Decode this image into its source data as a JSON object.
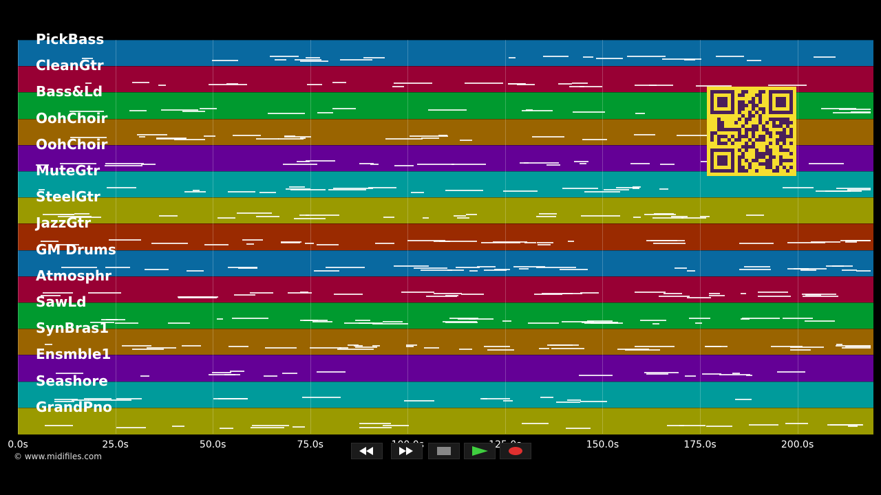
{
  "tracks": [
    {
      "name": "PickBass",
      "color": "#0969a0"
    },
    {
      "name": "CleanGtr",
      "color": "#980034"
    },
    {
      "name": "Bass&Ld",
      "color": "#009a2f"
    },
    {
      "name": "OohChoir",
      "color": "#9a6400"
    },
    {
      "name": "OohChoir",
      "color": "#640096"
    },
    {
      "name": "MuteGtr",
      "color": "#009b9b"
    },
    {
      "name": "SteelGtr",
      "color": "#9a9a00"
    },
    {
      "name": "JazzGtr",
      "color": "#9a2a00"
    },
    {
      "name": "GM Drums",
      "color": "#0969a0"
    },
    {
      "name": "Atmosphr",
      "color": "#980034"
    },
    {
      "name": "SawLd",
      "color": "#009a2f"
    },
    {
      "name": "SynBras1",
      "color": "#9a6400"
    },
    {
      "name": "Ensmble1",
      "color": "#640096"
    },
    {
      "name": "Seashore",
      "color": "#009b9b"
    },
    {
      "name": "GrandPno",
      "color": "#9a9a00"
    }
  ],
  "timeline": {
    "ticks": [
      "0.0s",
      "25.0s",
      "50.0s",
      "75.0s",
      "100.0s",
      "125.0s",
      "150.0s",
      "175.0s",
      "200.0s"
    ],
    "tick_seconds": [
      0,
      25,
      50,
      75,
      100,
      125,
      150,
      175,
      200
    ],
    "max_seconds": 219.5
  },
  "copyright": "© www.midifiles.com",
  "transport": {
    "buttons": [
      {
        "name": "rewind-button",
        "icon": "rewind-icon"
      },
      {
        "name": "fast-forward-button",
        "icon": "fast-forward-icon"
      },
      {
        "name": "stop-button",
        "icon": "stop-icon"
      },
      {
        "name": "play-button",
        "icon": "play-icon"
      },
      {
        "name": "record-button",
        "icon": "record-icon"
      }
    ],
    "play_color": "#3fcf3f",
    "record_color": "#e0302f"
  },
  "qr_code": {
    "icon": "qr-code-icon",
    "color": "#f6de2f"
  }
}
